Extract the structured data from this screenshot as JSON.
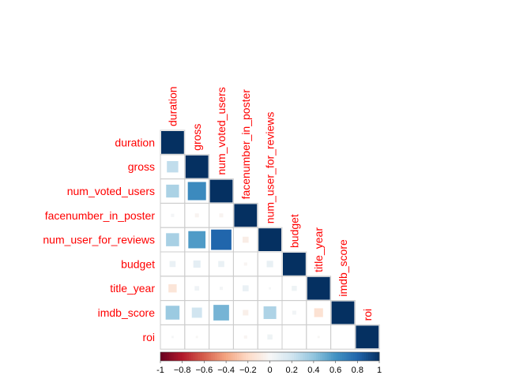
{
  "chart_data": {
    "type": "heatmap",
    "subtype": "correlation-matrix-lower-triangle",
    "method": "square",
    "variables": [
      "duration",
      "gross",
      "num_voted_users",
      "facenumber_in_poster",
      "num_user_for_reviews",
      "budget",
      "title_year",
      "imdb_score",
      "roi"
    ],
    "matrix": [
      [
        1.0,
        0.25,
        0.32,
        0.02,
        0.33,
        0.07,
        -0.13,
        0.37,
        0.01
      ],
      [
        0.25,
        1.0,
        0.64,
        -0.03,
        0.57,
        0.1,
        0.04,
        0.2,
        -0.01
      ],
      [
        0.32,
        0.64,
        1.0,
        -0.03,
        0.8,
        0.07,
        0.02,
        0.47,
        0.0
      ],
      [
        0.02,
        -0.03,
        -0.03,
        1.0,
        -0.07,
        -0.02,
        0.07,
        -0.06,
        -0.02
      ],
      [
        0.33,
        0.57,
        0.8,
        -0.07,
        1.0,
        0.08,
        0.01,
        0.31,
        0.05
      ],
      [
        0.07,
        0.1,
        0.07,
        -0.02,
        0.08,
        1.0,
        0.05,
        0.03,
        0.0
      ],
      [
        -0.13,
        0.04,
        0.02,
        0.07,
        0.01,
        0.05,
        1.0,
        -0.15,
        -0.01
      ],
      [
        0.37,
        0.2,
        0.47,
        -0.06,
        0.31,
        0.03,
        -0.15,
        1.0,
        0.0
      ],
      [
        0.01,
        -0.01,
        0.0,
        -0.02,
        0.05,
        0.0,
        -0.01,
        0.0,
        1.0
      ]
    ],
    "color_scale": {
      "range": [
        -1,
        1
      ],
      "ticks": [
        "-1",
        "−0.8",
        "−0.6",
        "−0.4",
        "−0.2",
        "0",
        "0.2",
        "0.4",
        "0.6",
        "0.8",
        "1"
      ],
      "low_color": "#67001F",
      "mid_color": "#FFFFFF",
      "high_color": "#053061"
    },
    "label_color": "#FF0000",
    "grid": true,
    "legend_placement": "bottom"
  }
}
